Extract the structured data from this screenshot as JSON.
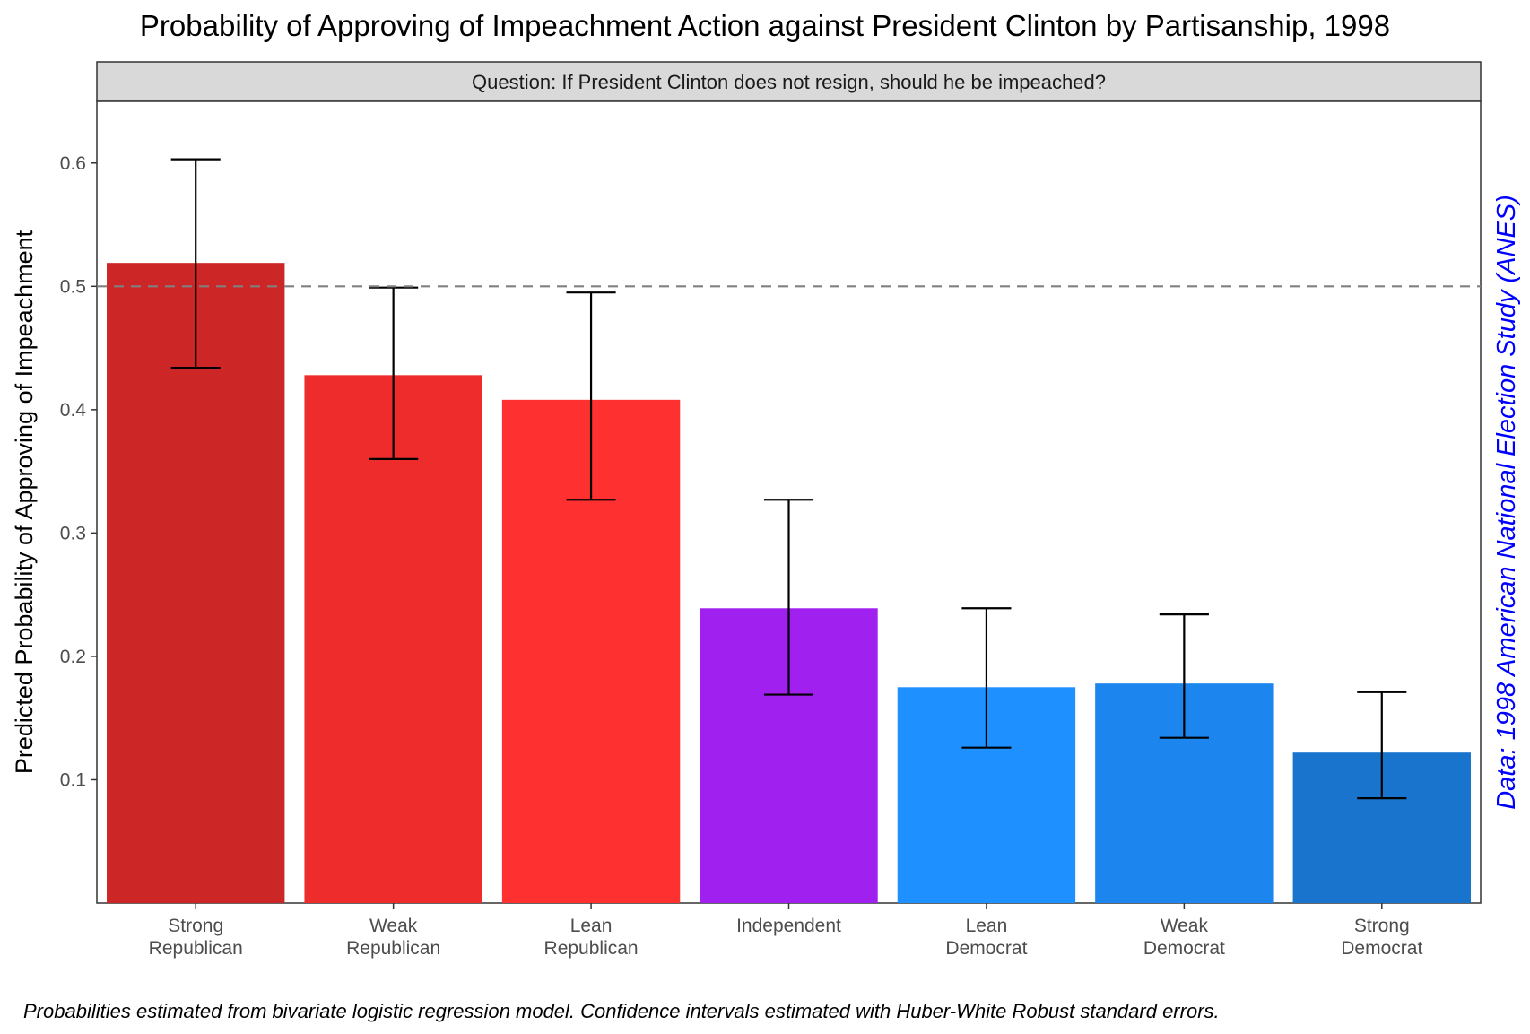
{
  "chart_data": {
    "type": "bar",
    "title": "Probability of Approving of Impeachment Action against President Clinton by Partisanship, 1998",
    "facet_label": "Question: If President Clinton does not resign, should he be impeached?",
    "ylabel": "Predicted Probability of Approving of Impeachment",
    "xlabel": "",
    "categories": [
      [
        "Strong",
        "Republican"
      ],
      [
        "Weak",
        "Republican"
      ],
      [
        "Lean",
        "Republican"
      ],
      [
        "Independent"
      ],
      [
        "Lean",
        "Democrat"
      ],
      [
        "Weak",
        "Democrat"
      ],
      [
        "Strong",
        "Democrat"
      ]
    ],
    "values": [
      0.519,
      0.428,
      0.408,
      0.239,
      0.175,
      0.178,
      0.122
    ],
    "ci_lower": [
      0.434,
      0.36,
      0.327,
      0.169,
      0.126,
      0.134,
      0.085
    ],
    "ci_upper": [
      0.603,
      0.499,
      0.495,
      0.327,
      0.239,
      0.234,
      0.171
    ],
    "bar_colors": [
      "#cd2626",
      "#ee2c2c",
      "#ff3030",
      "#a020f0",
      "#1e90ff",
      "#1c86ee",
      "#1874cd"
    ],
    "reference_line": {
      "y": 0.5,
      "style": "dashed",
      "color": "#808080"
    },
    "yticks": [
      0.1,
      0.2,
      0.3,
      0.4,
      0.5,
      0.6
    ],
    "ylim": [
      0,
      0.65
    ],
    "grid": false,
    "legend": "none",
    "source_note": "Data: 1998 American National Election Study (ANES)",
    "source_color": "#0000ff",
    "caption": "Probabilities estimated from bivariate logistic regression model. Confidence intervals estimated with Huber-White Robust standard errors."
  }
}
